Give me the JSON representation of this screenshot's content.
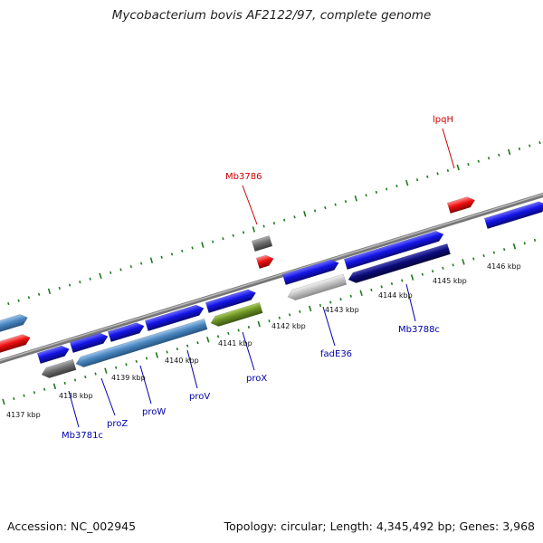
{
  "title": "Mycobacterium bovis AF2122/97, complete genome",
  "footer": {
    "accession": "Accession: NC_002945",
    "summary": "Topology: circular; Length: 4,345,492 bp; Genes: 3,968"
  },
  "colors": {
    "backbone": "#8c8c8c",
    "tick_green": "#1e7a1e",
    "label_red": "#cc0000",
    "label_blue": "#0000aa",
    "gene_blue": "#1414e6",
    "gene_steel": "#4a86c0",
    "gene_gray": "#6e6e6e",
    "gene_red": "#ee1111",
    "gene_olive": "#6b9122",
    "gene_lightgray": "#c4c4c4",
    "gene_navy": "#0b0b7a"
  },
  "scale_labels": [
    "4137 kbp",
    "4138 kbp",
    "4139 kbp",
    "4140 kbp",
    "4141 kbp",
    "4142 kbp",
    "4143 kbp",
    "4144 kbp",
    "4145 kbp",
    "4146 kbp"
  ],
  "gene_labels": [
    {
      "text": "Mb3786",
      "color": "red"
    },
    {
      "text": "lpqH",
      "color": "red"
    },
    {
      "text": "Mb3781c",
      "color": "blue"
    },
    {
      "text": "proZ",
      "color": "blue"
    },
    {
      "text": "proW",
      "color": "blue"
    },
    {
      "text": "proV",
      "color": "blue"
    },
    {
      "text": "proX",
      "color": "blue"
    },
    {
      "text": "fadE36",
      "color": "blue"
    },
    {
      "text": "Mb3788c",
      "color": "blue"
    }
  ]
}
